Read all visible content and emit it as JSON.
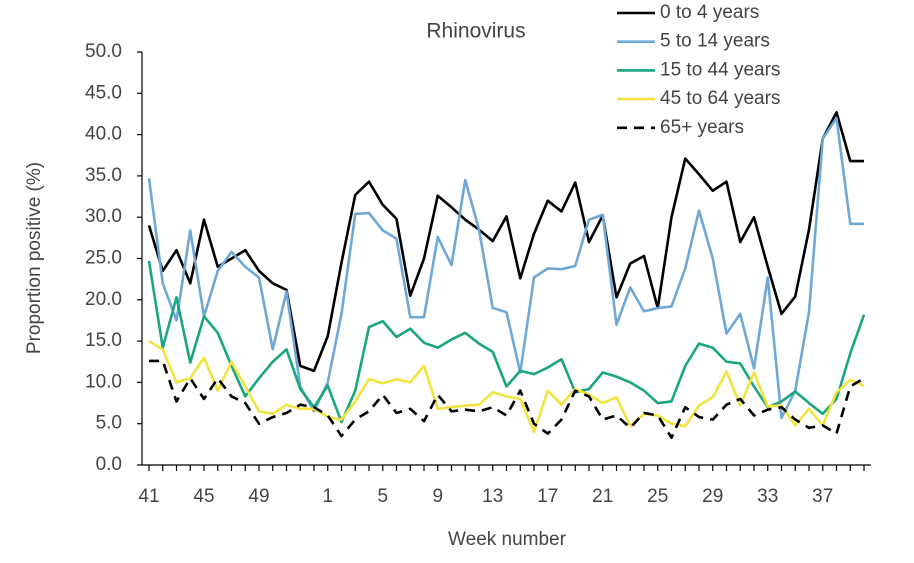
{
  "chart_data": {
    "type": "line",
    "title": "Rhinovirus",
    "x_label": "Week number",
    "y_label": "Proportion positive (%)",
    "categories": [
      "41",
      null,
      null,
      null,
      "45",
      null,
      null,
      null,
      "49",
      null,
      null,
      null,
      null,
      "1",
      null,
      null,
      null,
      "5",
      null,
      null,
      null,
      "9",
      null,
      null,
      null,
      "13",
      null,
      null,
      null,
      "17",
      null,
      null,
      null,
      "21",
      null,
      null,
      null,
      "25",
      null,
      null,
      null,
      "29",
      null,
      null,
      null,
      "33",
      null,
      null,
      null,
      "37",
      null,
      null,
      null
    ],
    "ylim": [
      0,
      50
    ],
    "yticks": [
      {
        "value": 0,
        "label": "0.0"
      },
      {
        "value": 5,
        "label": "5.0"
      },
      {
        "value": 10,
        "label": "10.0"
      },
      {
        "value": 15,
        "label": "15.0"
      },
      {
        "value": 20,
        "label": "20.0"
      },
      {
        "value": 25,
        "label": "25.0"
      },
      {
        "value": 30,
        "label": "30.0"
      },
      {
        "value": 35,
        "label": "35.0"
      },
      {
        "value": 40,
        "label": "40.0"
      },
      {
        "value": 45,
        "label": "45.0"
      },
      {
        "value": 50,
        "label": "50.0"
      }
    ],
    "grid": false,
    "legend": "top-right",
    "series": [
      {
        "name": "0 to 4 years",
        "color": "#000000",
        "dash": false,
        "values": [
          29,
          23.5,
          26,
          22,
          29.7,
          24,
          25,
          26,
          23.5,
          22,
          21.2,
          12,
          11.4,
          15.6,
          24.5,
          32.7,
          34.3,
          31.5,
          29.8,
          20.5,
          25,
          32.6,
          31.2,
          29.7,
          28.5,
          27.1,
          30.1,
          22.6,
          28,
          32,
          30.7,
          34.2,
          27,
          30.2,
          20.3,
          24.4,
          25.3,
          19,
          30,
          37.1,
          35.2,
          33.2,
          34.3,
          27,
          30,
          24,
          18.3,
          20.4,
          28.5,
          39.5,
          42.7,
          36.8,
          36.8
        ]
      },
      {
        "name": "5 to 14 years",
        "color": "#6fa8d6",
        "dash": false,
        "values": [
          34.7,
          22,
          17.5,
          28.4,
          18,
          23.5,
          25.8,
          24,
          22.7,
          14,
          21,
          9.5,
          6.5,
          10,
          18.3,
          30.4,
          30.5,
          28.4,
          27.4,
          17.9,
          17.9,
          27.6,
          24.2,
          34.5,
          28.5,
          19,
          18.5,
          11.2,
          22.7,
          23.8,
          23.7,
          24.1,
          29.7,
          30.3,
          17,
          21.5,
          18.6,
          19,
          19.2,
          23.8,
          30.8,
          25,
          15.9,
          18.3,
          11.7,
          22.7,
          5.7,
          9,
          18.5,
          39.5,
          42,
          29.2,
          29.2
        ]
      },
      {
        "name": "15 to 44 years",
        "color": "#1aa67f",
        "dash": false,
        "values": [
          24.7,
          14.2,
          20.3,
          12.4,
          18,
          16,
          12,
          8.3,
          10.5,
          12.5,
          14,
          9.2,
          7,
          9.6,
          5.2,
          9,
          16.7,
          17.4,
          15.5,
          16.5,
          14.8,
          14.2,
          15.2,
          16,
          14.7,
          13.7,
          9.5,
          11.4,
          11,
          11.8,
          12.8,
          8.8,
          9.2,
          11.2,
          10.7,
          10,
          9,
          7.5,
          7.7,
          12,
          14.7,
          14.2,
          12.5,
          12.3,
          9.5,
          7,
          7.7,
          8.9,
          7.5,
          6.2,
          8,
          13.5,
          18.2
        ]
      },
      {
        "name": "45 to 64 years",
        "color": "#f2e440",
        "dash": false,
        "values": [
          15,
          14,
          10,
          10.5,
          13,
          9,
          12.5,
          9.5,
          6.5,
          6.2,
          7.3,
          6.8,
          6.8,
          5.8,
          5.5,
          7.7,
          10.4,
          9.9,
          10.4,
          10,
          12,
          6.8,
          7,
          7.2,
          7.3,
          8.8,
          8.3,
          8,
          4,
          9,
          7.3,
          9.2,
          8.5,
          7.5,
          8.2,
          4.7,
          6.2,
          6,
          5,
          4.7,
          7.2,
          8.2,
          11.3,
          7.2,
          11.2,
          7.1,
          7.2,
          4.8,
          6.8,
          4.8,
          8.8,
          10.3,
          9.6
        ]
      },
      {
        "name": "65+ years",
        "color": "#000000",
        "dash": true,
        "values": [
          12.6,
          12.6,
          7.7,
          10.5,
          8,
          10.5,
          8.3,
          7.5,
          5,
          5.8,
          6.3,
          7.3,
          7,
          6,
          3.5,
          5.5,
          6.5,
          8.5,
          6.3,
          6.8,
          5.3,
          8.5,
          6.5,
          6.7,
          6.5,
          7,
          6,
          9,
          5,
          3.8,
          5.5,
          9,
          8.3,
          5.5,
          6,
          4.5,
          6.3,
          6,
          3.3,
          7,
          5.8,
          5.5,
          7.3,
          8,
          6,
          6.7,
          7,
          5.5,
          4.5,
          4.8,
          3.8,
          9.5,
          10.5
        ]
      }
    ]
  }
}
